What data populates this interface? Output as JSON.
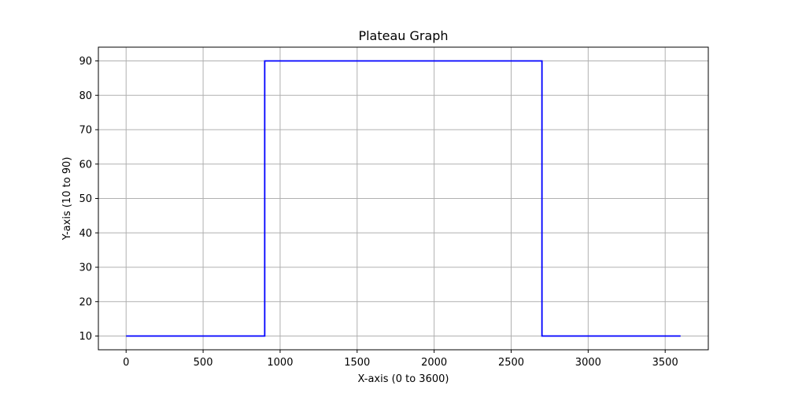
{
  "chart_data": {
    "type": "line",
    "title": "Plateau Graph",
    "xlabel": "X-axis (0 to 3600)",
    "ylabel": "Y-axis (10 to 90)",
    "xlim": [
      -180,
      3780
    ],
    "ylim": [
      6,
      94
    ],
    "x_ticks": [
      0,
      500,
      1000,
      1500,
      2000,
      2500,
      3000,
      3500
    ],
    "y_ticks": [
      10,
      20,
      30,
      40,
      50,
      60,
      70,
      80,
      90
    ],
    "grid": true,
    "series": [
      {
        "color": "#0000ff",
        "x": [
          0,
          900,
          900,
          2700,
          2700,
          3600
        ],
        "y": [
          10,
          10,
          90,
          90,
          10,
          10
        ]
      }
    ]
  }
}
